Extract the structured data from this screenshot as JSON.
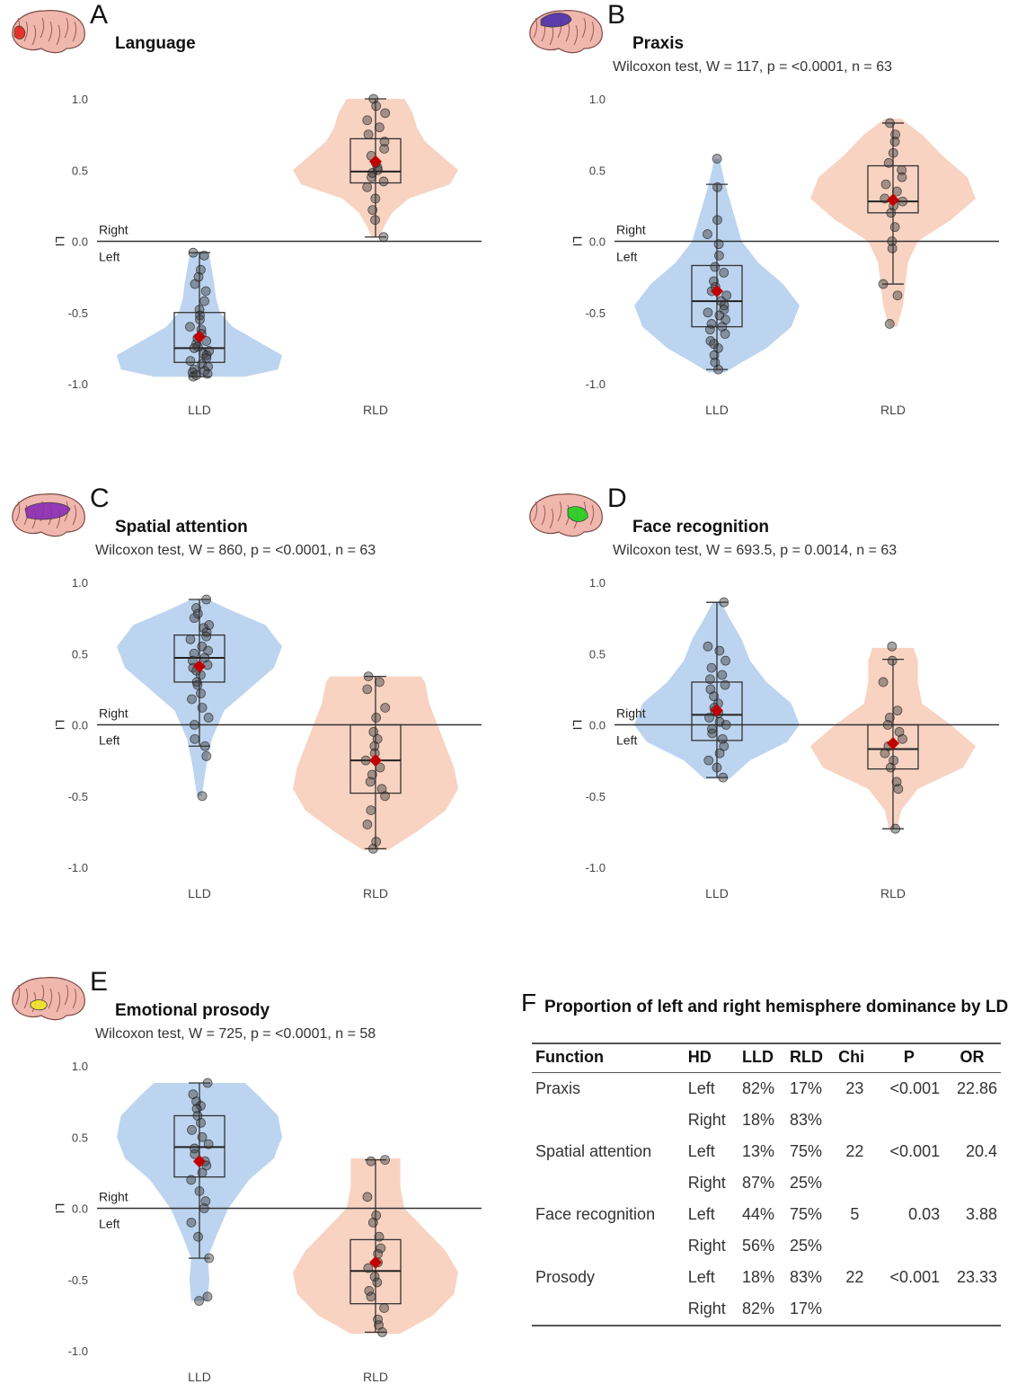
{
  "chart_data": [
    {
      "id": "A",
      "type": "violin-box-scatter",
      "letter": "A",
      "title": "Language",
      "stat": "",
      "ylabel": "LI",
      "ylim": [
        -1.0,
        1.0
      ],
      "yticks": [
        "-1.0",
        "-0.5",
        "0.0",
        "0.5",
        "1.0"
      ],
      "reference_line": 0.0,
      "ref_above": "Right",
      "ref_below": "Left",
      "brain_highlight": "#e8231f",
      "categories": [
        "LLD",
        "RLD"
      ],
      "groups": [
        {
          "name": "LLD",
          "color": "#bcd4ef",
          "min": -0.95,
          "q1": -0.85,
          "median": -0.75,
          "q3": -0.5,
          "max": -0.08,
          "mean": -0.67,
          "violin": [
            [
              -0.95,
              0.55
            ],
            [
              -0.9,
              0.95
            ],
            [
              -0.8,
              1.0
            ],
            [
              -0.7,
              0.7
            ],
            [
              -0.6,
              0.4
            ],
            [
              -0.5,
              0.25
            ],
            [
              -0.4,
              0.2
            ],
            [
              -0.3,
              0.18
            ],
            [
              -0.2,
              0.15
            ],
            [
              -0.1,
              0.12
            ],
            [
              -0.07,
              0.05
            ]
          ],
          "points": [
            -0.08,
            -0.1,
            -0.2,
            -0.25,
            -0.3,
            -0.35,
            -0.42,
            -0.48,
            -0.52,
            -0.55,
            -0.6,
            -0.62,
            -0.65,
            -0.68,
            -0.7,
            -0.72,
            -0.74,
            -0.75,
            -0.77,
            -0.79,
            -0.8,
            -0.82,
            -0.84,
            -0.86,
            -0.88,
            -0.9,
            -0.91,
            -0.92,
            -0.93,
            -0.95,
            -0.94
          ]
        },
        {
          "name": "RLD",
          "color": "#f8d3c2",
          "min": 0.03,
          "q1": 0.41,
          "median": 0.49,
          "q3": 0.72,
          "max": 1.0,
          "mean": 0.56,
          "violin": [
            [
              0.03,
              0.05
            ],
            [
              0.1,
              0.1
            ],
            [
              0.2,
              0.2
            ],
            [
              0.3,
              0.4
            ],
            [
              0.4,
              0.9
            ],
            [
              0.5,
              1.0
            ],
            [
              0.6,
              0.8
            ],
            [
              0.7,
              0.6
            ],
            [
              0.8,
              0.5
            ],
            [
              0.9,
              0.45
            ],
            [
              1.0,
              0.35
            ]
          ],
          "points": [
            0.03,
            0.15,
            0.22,
            0.3,
            0.38,
            0.42,
            0.45,
            0.48,
            0.5,
            0.52,
            0.55,
            0.6,
            0.65,
            0.7,
            0.75,
            0.8,
            0.85,
            0.9,
            0.95,
            1.0
          ]
        }
      ]
    },
    {
      "id": "B",
      "type": "violin-box-scatter",
      "letter": "B",
      "title": "Praxis",
      "stat": "Wilcoxon test, W = 117, p = <0.0001, n = 63",
      "ylabel": "LI",
      "ylim": [
        -1.0,
        1.0
      ],
      "yticks": [
        "-1.0",
        "-0.5",
        "0.0",
        "0.5",
        "1.0"
      ],
      "reference_line": 0.0,
      "ref_above": "Right",
      "ref_below": "Left",
      "brain_highlight": "#4b2fa8",
      "categories": [
        "LLD",
        "RLD"
      ],
      "groups": [
        {
          "name": "LLD",
          "color": "#bcd4ef",
          "min": -0.9,
          "q1": -0.6,
          "median": -0.42,
          "q3": -0.17,
          "max": 0.4,
          "mean": -0.35,
          "violin": [
            [
              -0.92,
              0.1
            ],
            [
              -0.85,
              0.3
            ],
            [
              -0.75,
              0.6
            ],
            [
              -0.6,
              0.9
            ],
            [
              -0.45,
              1.0
            ],
            [
              -0.3,
              0.8
            ],
            [
              -0.15,
              0.5
            ],
            [
              0.0,
              0.3
            ],
            [
              0.2,
              0.2
            ],
            [
              0.4,
              0.1
            ],
            [
              0.58,
              0.03
            ]
          ],
          "points": [
            0.58,
            0.38,
            0.15,
            0.05,
            -0.02,
            -0.1,
            -0.18,
            -0.22,
            -0.28,
            -0.32,
            -0.35,
            -0.38,
            -0.42,
            -0.45,
            -0.48,
            -0.5,
            -0.52,
            -0.55,
            -0.58,
            -0.6,
            -0.62,
            -0.65,
            -0.7,
            -0.72,
            -0.75,
            -0.8,
            -0.85,
            -0.9
          ]
        },
        {
          "name": "RLD",
          "color": "#f8d3c2",
          "min": -0.3,
          "q1": 0.2,
          "median": 0.28,
          "q3": 0.53,
          "max": 0.83,
          "mean": 0.29,
          "violin": [
            [
              -0.6,
              0.05
            ],
            [
              -0.45,
              0.12
            ],
            [
              -0.3,
              0.15
            ],
            [
              -0.15,
              0.18
            ],
            [
              0.0,
              0.3
            ],
            [
              0.15,
              0.7
            ],
            [
              0.3,
              1.0
            ],
            [
              0.45,
              0.9
            ],
            [
              0.6,
              0.6
            ],
            [
              0.75,
              0.35
            ],
            [
              0.86,
              0.1
            ]
          ],
          "points": [
            0.83,
            0.75,
            0.7,
            0.62,
            0.55,
            0.5,
            0.45,
            0.4,
            0.35,
            0.3,
            0.28,
            0.25,
            0.2,
            0.1,
            0.0,
            -0.05,
            -0.3,
            -0.38,
            -0.58
          ]
        }
      ]
    },
    {
      "id": "C",
      "type": "violin-box-scatter",
      "letter": "C",
      "title": "Spatial attention",
      "stat": "Wilcoxon test, W = 860, p = <0.0001, n = 63",
      "ylabel": "LI",
      "ylim": [
        -1.0,
        1.0
      ],
      "yticks": [
        "-1.0",
        "-0.5",
        "0.0",
        "0.5",
        "1.0"
      ],
      "reference_line": 0.0,
      "ref_above": "Right",
      "ref_below": "Left",
      "brain_highlight": "#8a2db5",
      "categories": [
        "LLD",
        "RLD"
      ],
      "groups": [
        {
          "name": "LLD",
          "color": "#bcd4ef",
          "min": -0.15,
          "q1": 0.3,
          "median": 0.47,
          "q3": 0.63,
          "max": 0.88,
          "mean": 0.41,
          "violin": [
            [
              -0.5,
              0.03
            ],
            [
              -0.3,
              0.08
            ],
            [
              -0.1,
              0.15
            ],
            [
              0.1,
              0.3
            ],
            [
              0.25,
              0.6
            ],
            [
              0.4,
              0.9
            ],
            [
              0.55,
              1.0
            ],
            [
              0.7,
              0.8
            ],
            [
              0.8,
              0.4
            ],
            [
              0.88,
              0.1
            ]
          ],
          "points": [
            0.88,
            0.82,
            0.78,
            0.75,
            0.7,
            0.68,
            0.65,
            0.62,
            0.6,
            0.55,
            0.52,
            0.5,
            0.47,
            0.45,
            0.42,
            0.4,
            0.38,
            0.35,
            0.3,
            0.28,
            0.22,
            0.18,
            0.12,
            0.05,
            0.0,
            -0.1,
            -0.15,
            -0.22,
            -0.5
          ]
        },
        {
          "name": "RLD",
          "color": "#f8d3c2",
          "min": -0.87,
          "q1": -0.48,
          "median": -0.25,
          "q3": 0.0,
          "max": 0.34,
          "mean": -0.25,
          "violin": [
            [
              -0.88,
              0.15
            ],
            [
              -0.75,
              0.5
            ],
            [
              -0.6,
              0.85
            ],
            [
              -0.45,
              1.0
            ],
            [
              -0.3,
              0.95
            ],
            [
              -0.15,
              0.85
            ],
            [
              0.0,
              0.75
            ],
            [
              0.15,
              0.65
            ],
            [
              0.3,
              0.6
            ],
            [
              0.34,
              0.55
            ]
          ],
          "points": [
            0.34,
            0.3,
            0.25,
            0.12,
            0.05,
            -0.05,
            -0.1,
            -0.15,
            -0.2,
            -0.25,
            -0.3,
            -0.35,
            -0.4,
            -0.45,
            -0.5,
            -0.6,
            -0.7,
            -0.82,
            -0.87
          ]
        }
      ]
    },
    {
      "id": "D",
      "type": "violin-box-scatter",
      "letter": "D",
      "title": "Face recognition",
      "stat": "Wilcoxon test, W = 693.5, p = 0.0014, n = 63",
      "ylabel": "LI",
      "ylim": [
        -1.0,
        1.0
      ],
      "yticks": [
        "-1.0",
        "-0.5",
        "0.0",
        "0.5",
        "1.0"
      ],
      "reference_line": 0.0,
      "ref_above": "Right",
      "ref_below": "Left",
      "brain_highlight": "#1fd01f",
      "categories": [
        "LLD",
        "RLD"
      ],
      "groups": [
        {
          "name": "LLD",
          "color": "#bcd4ef",
          "min": -0.37,
          "q1": -0.11,
          "median": 0.07,
          "q3": 0.3,
          "max": 0.86,
          "mean": 0.1,
          "violin": [
            [
              -0.38,
              0.15
            ],
            [
              -0.25,
              0.4
            ],
            [
              -0.12,
              0.85
            ],
            [
              0.0,
              1.0
            ],
            [
              0.15,
              0.9
            ],
            [
              0.3,
              0.6
            ],
            [
              0.45,
              0.4
            ],
            [
              0.6,
              0.3
            ],
            [
              0.75,
              0.15
            ],
            [
              0.86,
              0.05
            ]
          ],
          "points": [
            0.86,
            0.55,
            0.52,
            0.45,
            0.4,
            0.35,
            0.32,
            0.28,
            0.25,
            0.2,
            0.15,
            0.12,
            0.1,
            0.08,
            0.05,
            0.02,
            0.0,
            -0.03,
            -0.06,
            -0.1,
            -0.15,
            -0.2,
            -0.25,
            -0.3,
            -0.37
          ]
        },
        {
          "name": "RLD",
          "color": "#f8d3c2",
          "min": -0.73,
          "q1": -0.31,
          "median": -0.17,
          "q3": 0.0,
          "max": 0.46,
          "mean": -0.13,
          "violin": [
            [
              -0.73,
              0.05
            ],
            [
              -0.6,
              0.1
            ],
            [
              -0.45,
              0.3
            ],
            [
              -0.3,
              0.85
            ],
            [
              -0.15,
              1.0
            ],
            [
              0.0,
              0.7
            ],
            [
              0.15,
              0.35
            ],
            [
              0.3,
              0.3
            ],
            [
              0.45,
              0.3
            ],
            [
              0.54,
              0.25
            ]
          ],
          "points": [
            0.55,
            0.45,
            0.3,
            0.1,
            0.05,
            0.0,
            -0.05,
            -0.1,
            -0.15,
            -0.2,
            -0.25,
            -0.3,
            -0.4,
            -0.45,
            -0.73
          ]
        }
      ]
    },
    {
      "id": "E",
      "type": "violin-box-scatter",
      "letter": "E",
      "title": "Emotional prosody",
      "stat": "Wilcoxon test, W = 725, p = <0.0001, n = 58",
      "ylabel": "LI",
      "ylim": [
        -1.0,
        1.0
      ],
      "yticks": [
        "-1.0",
        "-0.5",
        "0.0",
        "0.5",
        "1.0"
      ],
      "reference_line": 0.0,
      "ref_above": "Right",
      "ref_below": "Left",
      "brain_highlight": "#f0e42a",
      "categories": [
        "LLD",
        "RLD"
      ],
      "groups": [
        {
          "name": "LLD",
          "color": "#bcd4ef",
          "min": -0.35,
          "q1": 0.22,
          "median": 0.43,
          "q3": 0.65,
          "max": 0.88,
          "mean": 0.33,
          "violin": [
            [
              -0.65,
              0.1
            ],
            [
              -0.5,
              0.12
            ],
            [
              -0.35,
              0.1
            ],
            [
              -0.2,
              0.2
            ],
            [
              0.0,
              0.35
            ],
            [
              0.2,
              0.6
            ],
            [
              0.35,
              0.9
            ],
            [
              0.5,
              1.0
            ],
            [
              0.65,
              0.95
            ],
            [
              0.8,
              0.7
            ],
            [
              0.88,
              0.55
            ]
          ],
          "points": [
            0.88,
            0.8,
            0.75,
            0.72,
            0.7,
            0.65,
            0.6,
            0.55,
            0.5,
            0.45,
            0.42,
            0.38,
            0.33,
            0.3,
            0.25,
            0.2,
            0.12,
            0.05,
            0.0,
            -0.1,
            -0.2,
            -0.35,
            -0.62,
            -0.65
          ]
        },
        {
          "name": "RLD",
          "color": "#f8d3c2",
          "min": -0.87,
          "q1": -0.67,
          "median": -0.44,
          "q3": -0.22,
          "max": 0.34,
          "mean": -0.38,
          "violin": [
            [
              -0.88,
              0.3
            ],
            [
              -0.75,
              0.7
            ],
            [
              -0.6,
              0.95
            ],
            [
              -0.45,
              1.0
            ],
            [
              -0.3,
              0.85
            ],
            [
              -0.15,
              0.6
            ],
            [
              0.0,
              0.35
            ],
            [
              0.15,
              0.3
            ],
            [
              0.3,
              0.3
            ],
            [
              0.35,
              0.3
            ]
          ],
          "points": [
            0.34,
            0.33,
            0.08,
            -0.05,
            -0.1,
            -0.2,
            -0.28,
            -0.32,
            -0.38,
            -0.42,
            -0.48,
            -0.52,
            -0.58,
            -0.62,
            -0.7,
            -0.78,
            -0.82,
            -0.87
          ]
        }
      ]
    }
  ],
  "table": {
    "letter": "F",
    "title": "Proportion of left and right hemisphere dominance by LD",
    "headers": [
      "Function",
      "HD",
      "LLD",
      "RLD",
      "Chi",
      "P",
      "OR"
    ],
    "rows": [
      [
        "Praxis",
        "Left",
        "82%",
        "17%",
        "23",
        "<0.001",
        "22.86"
      ],
      [
        "",
        "Right",
        "18%",
        "83%",
        "",
        "",
        ""
      ],
      [
        "Spatial attention",
        "Left",
        "13%",
        "75%",
        "22",
        "<0.001",
        "20.4"
      ],
      [
        "",
        "Right",
        "87%",
        "25%",
        "",
        "",
        ""
      ],
      [
        "Face recognition",
        "Left",
        "44%",
        "75%",
        "5",
        "0.03",
        "3.88"
      ],
      [
        "",
        "Right",
        "56%",
        "25%",
        "",
        "",
        ""
      ],
      [
        "Prosody",
        "Left",
        "18%",
        "83%",
        "22",
        "<0.001",
        "23.33"
      ],
      [
        "",
        "Right",
        "82%",
        "17%",
        "",
        "",
        ""
      ]
    ]
  }
}
